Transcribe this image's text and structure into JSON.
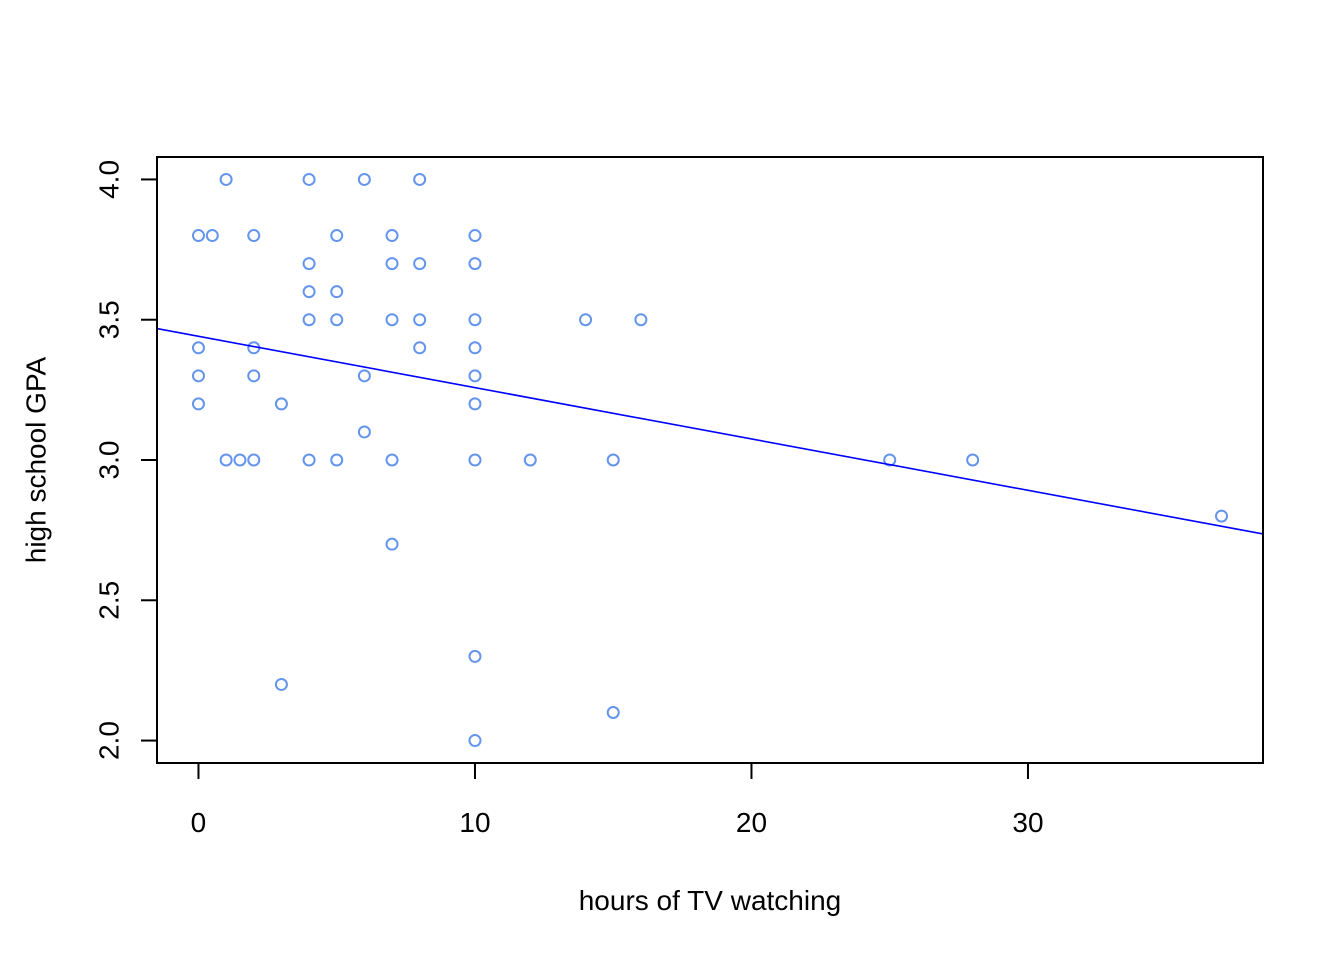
{
  "chart_data": {
    "type": "scatter",
    "title": "",
    "xlabel": "hours of TV watching",
    "ylabel": "high school GPA",
    "xlim": [
      -1.5,
      38.5
    ],
    "ylim": [
      1.92,
      4.08
    ],
    "xticks": [
      0,
      10,
      20,
      30
    ],
    "yticks": [
      2.0,
      2.5,
      3.0,
      3.5,
      4.0
    ],
    "xtick_labels": [
      "0",
      "10",
      "20",
      "30"
    ],
    "ytick_labels": [
      "2.0",
      "2.5",
      "3.0",
      "3.5",
      "4.0"
    ],
    "grid": false,
    "point_color": "#6495ED",
    "line_color": "#0000FF",
    "points": [
      {
        "x": 0,
        "y": 3.8
      },
      {
        "x": 0.5,
        "y": 3.8
      },
      {
        "x": 1,
        "y": 4.0
      },
      {
        "x": 2,
        "y": 3.8
      },
      {
        "x": 0,
        "y": 3.4
      },
      {
        "x": 0,
        "y": 3.3
      },
      {
        "x": 0,
        "y": 3.2
      },
      {
        "x": 2,
        "y": 3.4
      },
      {
        "x": 2,
        "y": 3.3
      },
      {
        "x": 1,
        "y": 3.0
      },
      {
        "x": 1.5,
        "y": 3.0
      },
      {
        "x": 2,
        "y": 3.0
      },
      {
        "x": 3,
        "y": 3.2
      },
      {
        "x": 3,
        "y": 2.2
      },
      {
        "x": 4,
        "y": 4.0
      },
      {
        "x": 4,
        "y": 3.7
      },
      {
        "x": 4,
        "y": 3.6
      },
      {
        "x": 4,
        "y": 3.5
      },
      {
        "x": 4,
        "y": 3.0
      },
      {
        "x": 5,
        "y": 3.8
      },
      {
        "x": 5,
        "y": 3.6
      },
      {
        "x": 5,
        "y": 3.5
      },
      {
        "x": 5,
        "y": 3.0
      },
      {
        "x": 6,
        "y": 4.0
      },
      {
        "x": 6,
        "y": 3.3
      },
      {
        "x": 6,
        "y": 3.1
      },
      {
        "x": 7,
        "y": 3.8
      },
      {
        "x": 7,
        "y": 3.7
      },
      {
        "x": 7,
        "y": 3.5
      },
      {
        "x": 7,
        "y": 3.0
      },
      {
        "x": 7,
        "y": 2.7
      },
      {
        "x": 8,
        "y": 4.0
      },
      {
        "x": 8,
        "y": 3.7
      },
      {
        "x": 8,
        "y": 3.5
      },
      {
        "x": 8,
        "y": 3.4
      },
      {
        "x": 10,
        "y": 3.8
      },
      {
        "x": 10,
        "y": 3.7
      },
      {
        "x": 10,
        "y": 3.5
      },
      {
        "x": 10,
        "y": 3.4
      },
      {
        "x": 10,
        "y": 3.3
      },
      {
        "x": 10,
        "y": 3.2
      },
      {
        "x": 10,
        "y": 3.0
      },
      {
        "x": 10,
        "y": 2.3
      },
      {
        "x": 10,
        "y": 2.0
      },
      {
        "x": 12,
        "y": 3.0
      },
      {
        "x": 14,
        "y": 3.5
      },
      {
        "x": 15,
        "y": 3.0
      },
      {
        "x": 15,
        "y": 2.1
      },
      {
        "x": 16,
        "y": 3.5
      },
      {
        "x": 25,
        "y": 3.0
      },
      {
        "x": 28,
        "y": 3.0
      },
      {
        "x": 37,
        "y": 2.8
      }
    ],
    "regression_line": {
      "intercept": 3.441,
      "slope": -0.0183
    }
  }
}
